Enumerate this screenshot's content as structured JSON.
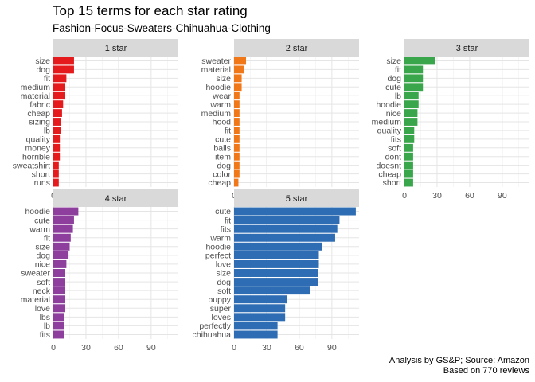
{
  "title": "Top 15 terms for each star rating",
  "subtitle": "Fashion-Focus-Sweaters-Chihuahua-Clothing",
  "caption_line1": "Analysis by GS&P; Source: Amazon",
  "caption_line2": "Based on 770 reviews",
  "chart_data": {
    "type": "bar",
    "orientation": "horizontal",
    "xlim": [
      0,
      115
    ],
    "x_ticks": [
      0,
      30,
      60,
      90
    ],
    "grid": true,
    "panels": [
      {
        "label": "1 star",
        "color": "#E41A1C",
        "terms": [
          "size",
          "dog",
          "fit",
          "medium",
          "material",
          "fabric",
          "cheap",
          "sizing",
          "lb",
          "quality",
          "money",
          "horrible",
          "sweatshirt",
          "short",
          "runs"
        ],
        "values": [
          19,
          19,
          12,
          11,
          11,
          9,
          8,
          7,
          7,
          6,
          6,
          6,
          5,
          5,
          5
        ]
      },
      {
        "label": "2 star",
        "color": "#F07818",
        "terms": [
          "sweater",
          "material",
          "size",
          "hoodie",
          "wear",
          "warm",
          "medium",
          "hood",
          "fit",
          "cute",
          "balls",
          "item",
          "dog",
          "color",
          "cheap"
        ],
        "values": [
          11,
          9,
          7,
          7,
          5,
          5,
          5,
          5,
          5,
          5,
          5,
          5,
          5,
          5,
          4
        ]
      },
      {
        "label": "3 star",
        "color": "#3AA64C",
        "terms": [
          "size",
          "fit",
          "dog",
          "cute",
          "lb",
          "hoodie",
          "nice",
          "medium",
          "quality",
          "fits",
          "soft",
          "dont",
          "doesnt",
          "cheap",
          "short"
        ],
        "values": [
          28,
          17,
          17,
          17,
          13,
          13,
          12,
          12,
          9,
          9,
          8,
          8,
          8,
          8,
          8
        ]
      },
      {
        "label": "4 star",
        "color": "#8E3F9E",
        "terms": [
          "hoodie",
          "cute",
          "warm",
          "fit",
          "size",
          "dog",
          "nice",
          "sweater",
          "soft",
          "neck",
          "material",
          "love",
          "lbs",
          "lb",
          "fits"
        ],
        "values": [
          23,
          19,
          18,
          16,
          15,
          14,
          12,
          11,
          11,
          11,
          11,
          11,
          10,
          10,
          10
        ]
      },
      {
        "label": "5 star",
        "color": "#2E6DB4",
        "terms": [
          "cute",
          "fit",
          "fits",
          "warm",
          "hoodie",
          "perfect",
          "love",
          "size",
          "dog",
          "soft",
          "puppy",
          "super",
          "loves",
          "perfectly",
          "chihuahua"
        ],
        "values": [
          112,
          97,
          95,
          93,
          81,
          78,
          78,
          77,
          77,
          70,
          49,
          47,
          47,
          40,
          40
        ]
      }
    ]
  }
}
